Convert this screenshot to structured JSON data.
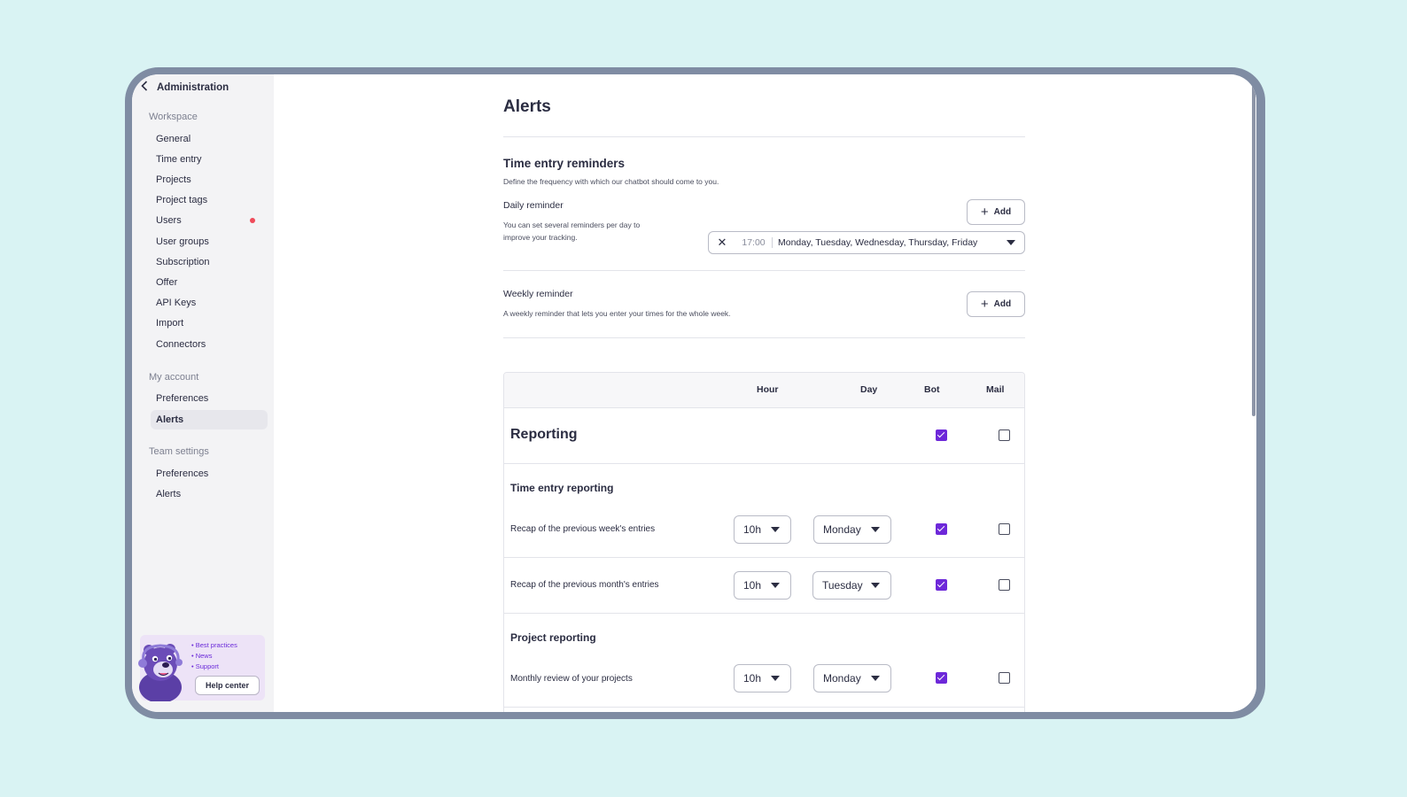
{
  "sidebar": {
    "back_label": "Administration",
    "workspace_title": "Workspace",
    "workspace_items": [
      "General",
      "Time entry",
      "Projects",
      "Project tags",
      "Users",
      "User groups",
      "Subscription",
      "Offer",
      "API Keys",
      "Import",
      "Connectors"
    ],
    "account_title": "My account",
    "account_items": [
      "Preferences",
      "Alerts"
    ],
    "team_title": "Team settings",
    "team_items": [
      "Preferences",
      "Alerts"
    ],
    "active_item": "My account / Alerts",
    "notification_dot_color": "#ef4b5a",
    "help": {
      "links": [
        "Best practices",
        "News",
        "Support"
      ],
      "button": "Help center"
    }
  },
  "page": {
    "title": "Alerts",
    "reminders": {
      "title": "Time entry reminders",
      "subtitle": "Define the frequency with which our chatbot should come to you.",
      "daily": {
        "label": "Daily reminder",
        "desc_line1": "You can set several reminders per day to",
        "desc_line2": "improve your tracking.",
        "add": "Add",
        "entry_time": "17:00",
        "entry_days": "Monday, Tuesday, Wednesday, Thursday, Friday"
      },
      "weekly": {
        "label": "Weekly reminder",
        "desc": "A weekly reminder that lets you enter your times for the whole week.",
        "add": "Add"
      }
    },
    "table": {
      "headers": {
        "hour": "Hour",
        "day": "Day",
        "bot": "Bot",
        "mail": "Mail"
      },
      "section": {
        "title": "Reporting",
        "bot": true,
        "mail": false
      },
      "groups": [
        {
          "title": "Time entry reporting",
          "rows": [
            {
              "label": "Recap of the previous week's entries",
              "hour": "10h",
              "day": "Monday",
              "bot": true,
              "mail": false
            },
            {
              "label": "Recap of the previous month's entries",
              "hour": "10h",
              "day": "Tuesday",
              "bot": true,
              "mail": false
            }
          ]
        },
        {
          "title": "Project reporting",
          "rows": [
            {
              "label": "Monthly review of your projects",
              "hour": "10h",
              "day": "Monday",
              "bot": true,
              "mail": false
            }
          ]
        }
      ]
    },
    "accent_color": "#6d28d9"
  }
}
